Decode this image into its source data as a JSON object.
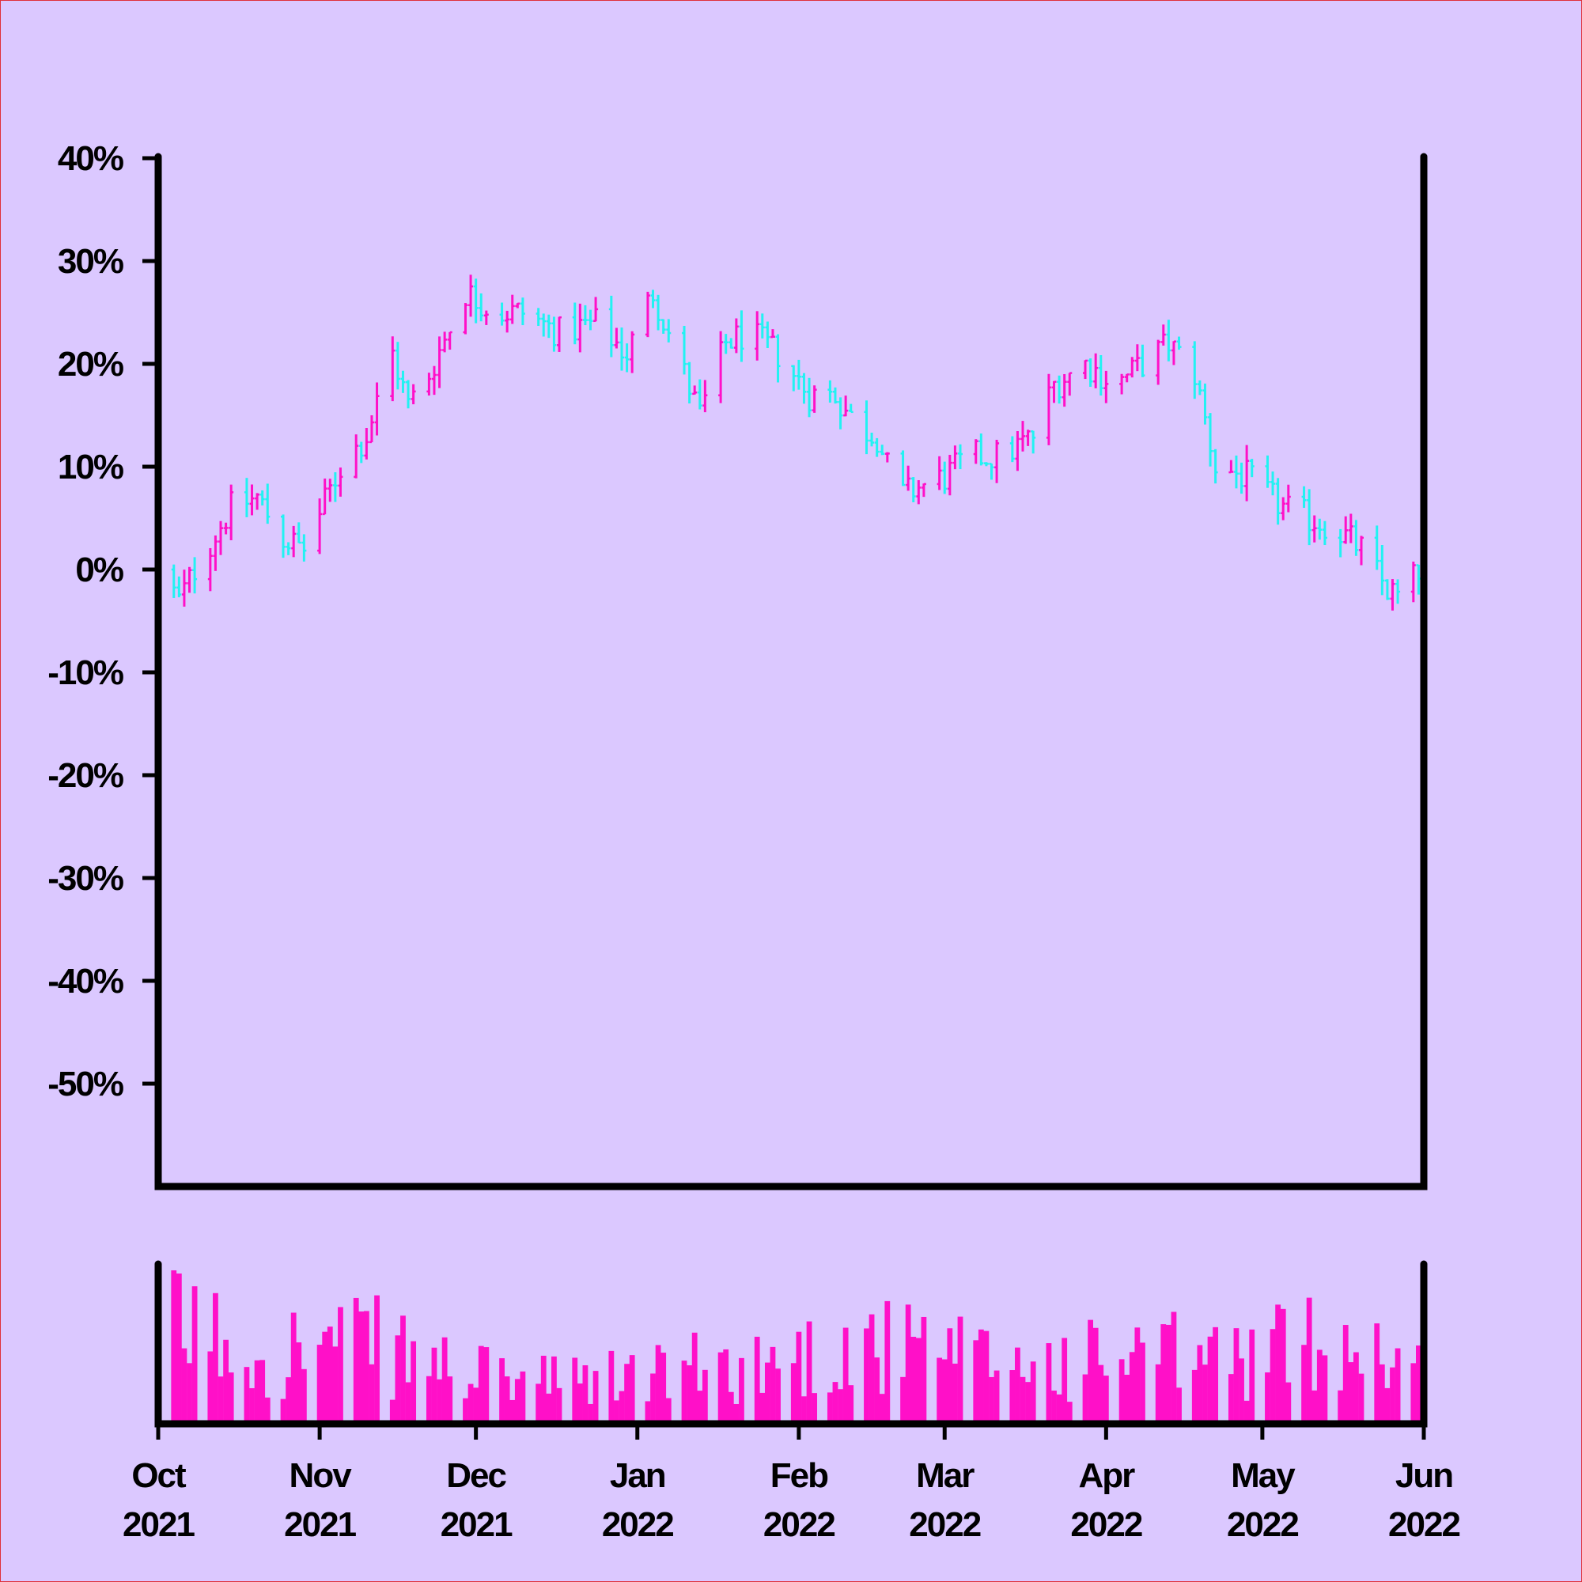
{
  "chart_data": {
    "type": "ohlc",
    "title": "",
    "xlabel": "",
    "ylabel": "",
    "y_unit": "%",
    "ylim": [
      -60,
      40
    ],
    "yticks": [
      40,
      30,
      20,
      10,
      0,
      -10,
      -20,
      -30,
      -40,
      -50
    ],
    "ytick_labels": [
      "40%",
      "30%",
      "20%",
      "10%",
      "0%",
      "-10%",
      "-20%",
      "-30%",
      "-40%",
      "-50%"
    ],
    "xlim": [
      "2021-10-01",
      "2022-06-01"
    ],
    "xticks": [
      {
        "date": "2021-10-01",
        "month": "Oct",
        "year": "2021"
      },
      {
        "date": "2021-11-01",
        "month": "Nov",
        "year": "2021"
      },
      {
        "date": "2021-12-01",
        "month": "Dec",
        "year": "2021"
      },
      {
        "date": "2022-01-01",
        "month": "Jan",
        "year": "2022"
      },
      {
        "date": "2022-02-01",
        "month": "Feb",
        "year": "2022"
      },
      {
        "date": "2022-03-01",
        "month": "Mar",
        "year": "2022"
      },
      {
        "date": "2022-04-01",
        "month": "Apr",
        "year": "2022"
      },
      {
        "date": "2022-05-01",
        "month": "May",
        "year": "2022"
      },
      {
        "date": "2022-06-01",
        "month": "Jun",
        "year": "2022"
      }
    ],
    "colors": {
      "up": "#ff10c8",
      "down": "#22f2f2",
      "volume": "#ff10c8",
      "axes": "#000000",
      "background": "#dbc8ff"
    },
    "grid": false,
    "legend": "none",
    "price_path_close_pct": [
      [
        "2021-10-01",
        0
      ],
      [
        "2021-10-05",
        -3
      ],
      [
        "2021-10-08",
        0
      ],
      [
        "2021-10-15",
        6
      ],
      [
        "2021-10-20",
        7
      ],
      [
        "2021-10-25",
        3
      ],
      [
        "2021-10-29",
        2
      ],
      [
        "2021-11-05",
        10
      ],
      [
        "2021-11-10",
        13
      ],
      [
        "2021-11-15",
        21
      ],
      [
        "2021-11-18",
        16
      ],
      [
        "2021-11-22",
        19
      ],
      [
        "2021-11-29",
        27
      ],
      [
        "2021-12-05",
        25
      ],
      [
        "2021-12-10",
        25
      ],
      [
        "2021-12-17",
        23
      ],
      [
        "2021-12-24",
        24
      ],
      [
        "2021-12-30",
        21
      ],
      [
        "2022-01-04",
        27
      ],
      [
        "2022-01-10",
        19
      ],
      [
        "2022-01-13",
        15
      ],
      [
        "2022-01-18",
        22
      ],
      [
        "2022-01-22",
        23
      ],
      [
        "2022-01-28",
        21
      ],
      [
        "2022-02-03",
        17
      ],
      [
        "2022-02-08",
        17
      ],
      [
        "2022-02-12",
        14
      ],
      [
        "2022-02-16",
        13
      ],
      [
        "2022-02-20",
        7
      ],
      [
        "2022-02-24",
        8
      ],
      [
        "2022-03-01",
        9
      ],
      [
        "2022-03-06",
        11
      ],
      [
        "2022-03-12",
        11
      ],
      [
        "2022-03-18",
        13
      ],
      [
        "2022-03-22",
        18
      ],
      [
        "2022-03-28",
        20
      ],
      [
        "2022-04-03",
        18
      ],
      [
        "2022-04-08",
        20
      ],
      [
        "2022-04-13",
        22
      ],
      [
        "2022-04-18",
        19
      ],
      [
        "2022-04-22",
        10
      ],
      [
        "2022-04-28",
        9
      ],
      [
        "2022-05-05",
        6
      ],
      [
        "2022-05-10",
        5
      ],
      [
        "2022-05-15",
        4
      ],
      [
        "2022-05-20",
        2
      ],
      [
        "2022-05-25",
        -2
      ],
      [
        "2022-05-28",
        -3
      ],
      [
        "2022-05-31",
        0
      ]
    ],
    "volume_profile_relative": [
      [
        "2021-10-01",
        0.8
      ],
      [
        "2021-10-20",
        0.55
      ],
      [
        "2021-11-10",
        0.6
      ],
      [
        "2021-12-01",
        0.35
      ],
      [
        "2021-12-20",
        0.3
      ],
      [
        "2022-01-10",
        0.4
      ],
      [
        "2022-01-25",
        0.45
      ],
      [
        "2022-02-15",
        0.6
      ],
      [
        "2022-03-01",
        0.5
      ],
      [
        "2022-03-20",
        0.45
      ],
      [
        "2022-04-10",
        0.5
      ],
      [
        "2022-04-28",
        0.5
      ],
      [
        "2022-05-15",
        0.65
      ],
      [
        "2022-05-31",
        0.45
      ]
    ]
  }
}
